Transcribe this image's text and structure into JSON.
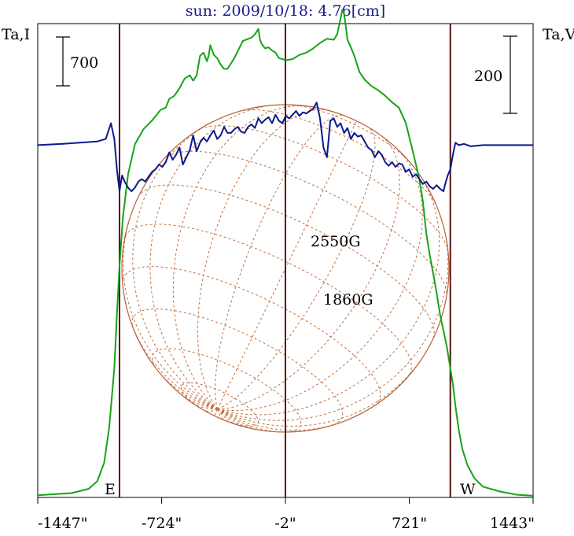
{
  "title": "sun: 2009/10/18: 4.76[cm]",
  "colors": {
    "title": "#1a1a8c",
    "frame": "#000000",
    "limb_markers": "#5a1010",
    "intensity_curve": "#17a317",
    "polarization_curve": "#0b1a8c",
    "solar_disk": "#b0603a",
    "grid": "#c07040"
  },
  "chart_data": {
    "type": "line",
    "title": "sun: 2009/10/18: 4.76[cm]",
    "xlabel": "",
    "y_left_label": "Ta,I",
    "y_right_label": "Ta,V",
    "x_ticks": [
      {
        "label": "-1447\"",
        "value": -1447
      },
      {
        "label": "-724\"",
        "value": -724
      },
      {
        "label": "-2\"",
        "value": -2
      },
      {
        "label": "721\"",
        "value": 721
      },
      {
        "label": "1443\"",
        "value": 1443
      }
    ],
    "xlim": [
      -1447,
      1443
    ],
    "limb_markers": [
      -970,
      -2,
      960
    ],
    "limb_labels": {
      "east": "E",
      "west": "W"
    },
    "scale_bars": {
      "left": "700",
      "right": "200"
    },
    "annotations": [
      "2550G",
      "1860G"
    ],
    "series": [
      {
        "key": "I",
        "axis": "left",
        "ylim": [
          0,
          4400
        ],
        "x": [
          -1447,
          -1350,
          -1250,
          -1150,
          -1100,
          -1060,
          -1030,
          -1000,
          -985,
          -970,
          -950,
          -920,
          -880,
          -830,
          -780,
          -730,
          -700,
          -680,
          -650,
          -620,
          -590,
          -560,
          -540,
          -520,
          -500,
          -480,
          -460,
          -450,
          -440,
          -420,
          -400,
          -380,
          -360,
          -340,
          -300,
          -250,
          -200,
          -180,
          -160,
          -150,
          -140,
          -120,
          -100,
          -80,
          -60,
          -40,
          -20,
          0,
          40,
          80,
          120,
          160,
          200,
          240,
          280,
          300,
          320,
          330,
          340,
          350,
          360,
          380,
          400,
          430,
          460,
          500,
          540,
          580,
          620,
          660,
          700,
          740,
          780,
          800,
          820,
          840,
          860,
          880,
          900,
          920,
          940,
          950,
          960,
          975,
          990,
          1010,
          1030,
          1060,
          1100,
          1150,
          1250,
          1350,
          1443
        ],
        "y": [
          20,
          30,
          40,
          80,
          150,
          320,
          650,
          1200,
          1700,
          2150,
          2600,
          3000,
          3280,
          3420,
          3500,
          3600,
          3620,
          3700,
          3730,
          3800,
          3890,
          3920,
          3870,
          3920,
          4100,
          4130,
          4050,
          4100,
          4200,
          4110,
          4080,
          4020,
          3980,
          3980,
          4080,
          4240,
          4270,
          4300,
          4350,
          4250,
          4210,
          4170,
          4180,
          4150,
          4130,
          4080,
          4070,
          4060,
          4070,
          4110,
          4130,
          4170,
          4220,
          4260,
          4250,
          4300,
          4450,
          4530,
          4490,
          4380,
          4250,
          4180,
          4100,
          3950,
          3880,
          3820,
          3780,
          3730,
          3670,
          3620,
          3480,
          3220,
          2950,
          2750,
          2450,
          2250,
          2080,
          1900,
          1700,
          1550,
          1400,
          1300,
          1200,
          1050,
          850,
          620,
          450,
          300,
          180,
          100,
          55,
          25,
          15
        ]
      },
      {
        "key": "V",
        "axis": "right",
        "ylim": [
          -290,
          100
        ],
        "x": [
          -1447,
          -1300,
          -1200,
          -1100,
          -1050,
          -1020,
          -1000,
          -985,
          -970,
          -955,
          -940,
          -920,
          -900,
          -880,
          -860,
          -840,
          -820,
          -800,
          -780,
          -760,
          -740,
          -720,
          -700,
          -680,
          -660,
          -640,
          -620,
          -600,
          -580,
          -560,
          -540,
          -520,
          -500,
          -480,
          -460,
          -440,
          -420,
          -400,
          -380,
          -360,
          -340,
          -320,
          -300,
          -280,
          -260,
          -240,
          -220,
          -200,
          -180,
          -160,
          -140,
          -120,
          -100,
          -80,
          -60,
          -40,
          -20,
          0,
          20,
          40,
          60,
          80,
          100,
          120,
          140,
          160,
          180,
          200,
          220,
          240,
          260,
          280,
          300,
          320,
          340,
          360,
          380,
          400,
          420,
          440,
          460,
          480,
          500,
          520,
          540,
          560,
          580,
          600,
          620,
          640,
          660,
          680,
          700,
          720,
          740,
          760,
          780,
          800,
          820,
          840,
          860,
          880,
          900,
          920,
          930,
          945,
          960,
          975,
          990,
          1010,
          1040,
          1080,
          1150,
          1250,
          1350,
          1443
        ],
        "y": [
          0,
          1,
          2,
          3,
          5,
          18,
          5,
          -20,
          -38,
          -25,
          -30,
          -35,
          -38,
          -35,
          -30,
          -28,
          -30,
          -26,
          -22,
          -20,
          -16,
          -18,
          -14,
          -6,
          -12,
          -8,
          -2,
          -16,
          -10,
          -4,
          8,
          -5,
          2,
          6,
          3,
          8,
          12,
          5,
          8,
          15,
          10,
          10,
          13,
          15,
          11,
          10,
          15,
          17,
          14,
          22,
          18,
          21,
          23,
          18,
          25,
          20,
          18,
          24,
          22,
          25,
          28,
          24,
          27,
          26,
          28,
          30,
          35,
          22,
          -2,
          -10,
          20,
          22,
          15,
          18,
          10,
          14,
          5,
          10,
          7,
          8,
          3,
          -2,
          -4,
          -10,
          -5,
          -8,
          -14,
          -17,
          -14,
          -18,
          -15,
          -16,
          -22,
          -20,
          -26,
          -24,
          -28,
          -32,
          -30,
          -34,
          -36,
          -33,
          -36,
          -38,
          -32,
          -25,
          -20,
          -8,
          2,
          0,
          1,
          -1,
          0,
          0,
          0,
          0
        ]
      }
    ]
  }
}
